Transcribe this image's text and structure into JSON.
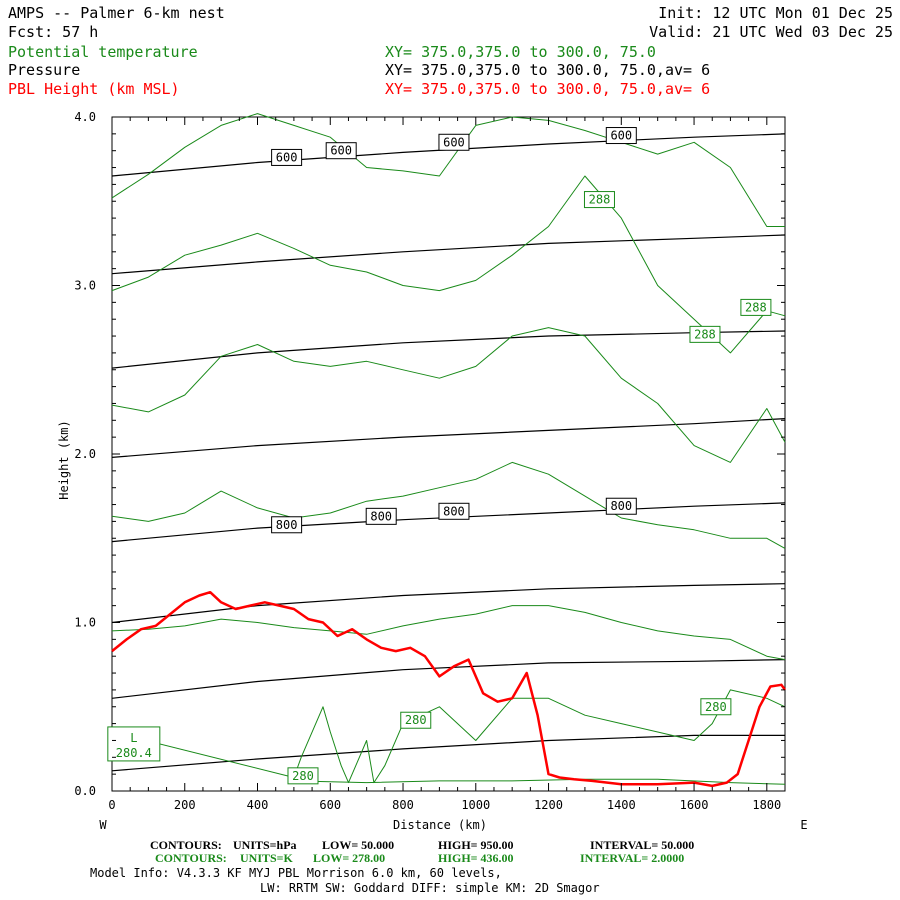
{
  "header": {
    "title": "AMPS -- Palmer 6-km nest",
    "fcst": "Fcst:   57 h",
    "init": "Init: 12 UTC Mon 01 Dec 25",
    "valid": "Valid: 21 UTC Wed 03 Dec 25",
    "fields": [
      {
        "name": "Potential temperature",
        "xy": "XY= 375.0,375.0 to 300.0, 75.0",
        "color": "#1a8a1a"
      },
      {
        "name": "Pressure",
        "xy": "XY= 375.0,375.0 to 300.0, 75.0,av=  6",
        "color": "#000000"
      },
      {
        "name": "PBL Height (km MSL)",
        "xy": "XY= 375.0,375.0 to 300.0, 75.0,av=  6",
        "color": "#ff0000"
      }
    ]
  },
  "footer": {
    "pressure_contours": {
      "label": "CONTOURS:",
      "units": "UNITS=hPa",
      "low": "LOW=  50.000",
      "high": "HIGH=  950.00",
      "interval": "INTERVAL=  50.000"
    },
    "theta_contours": {
      "label": "CONTOURS:",
      "units": "UNITS=K",
      "low": "LOW=  278.00",
      "high": "HIGH=  436.00",
      "interval": "INTERVAL=  2.0000"
    },
    "model_info": "Model Info: V4.3.3   KF      MYJ PBL  Morrison          6.0 km,  60 levels,",
    "model_info2": "LW: RRTM SW: Goddard DIFF: simple KM: 2D Smagor"
  },
  "chart_data": {
    "type": "line",
    "xlabel": "Distance (km)",
    "ylabel": "Height (km)",
    "xlim": [
      0,
      1850
    ],
    "ylim": [
      0,
      4.0
    ],
    "x_ticks": [
      0,
      200,
      400,
      600,
      800,
      1000,
      1200,
      1400,
      1600,
      1800
    ],
    "y_ticks": [
      0.0,
      1.0,
      2.0,
      3.0,
      4.0
    ],
    "x_tick_labels": [
      "0",
      "200",
      "400",
      "600",
      "800",
      "1000",
      "1200",
      "1400",
      "1600",
      "1800"
    ],
    "y_tick_labels": [
      "0.0",
      "1.0",
      "2.0",
      "3.0",
      "4.0"
    ],
    "left_end_label": "W",
    "right_end_label": "E",
    "colors": {
      "pressure": "#000000",
      "theta": "#1a8a1a",
      "pbl": "#ff0000"
    },
    "pressure_series": [
      {
        "x": [
          0,
          400,
          800,
          1200,
          1600,
          1850
        ],
        "y": [
          0.12,
          0.19,
          0.25,
          0.3,
          0.33,
          0.33
        ]
      },
      {
        "x": [
          0,
          400,
          800,
          1200,
          1600,
          1850
        ],
        "y": [
          0.55,
          0.65,
          0.72,
          0.76,
          0.77,
          0.78
        ]
      },
      {
        "x": [
          0,
          400,
          800,
          1200,
          1600,
          1850
        ],
        "y": [
          1.0,
          1.1,
          1.16,
          1.2,
          1.22,
          1.23
        ]
      },
      {
        "x": [
          0,
          400,
          800,
          1200,
          1600,
          1850
        ],
        "y": [
          1.48,
          1.56,
          1.61,
          1.65,
          1.69,
          1.71
        ]
      },
      {
        "x": [
          0,
          400,
          800,
          1200,
          1600,
          1850
        ],
        "y": [
          1.98,
          2.05,
          2.1,
          2.14,
          2.18,
          2.21
        ]
      },
      {
        "x": [
          0,
          400,
          800,
          1200,
          1600,
          1850
        ],
        "y": [
          2.51,
          2.6,
          2.66,
          2.7,
          2.72,
          2.73
        ]
      },
      {
        "x": [
          0,
          400,
          800,
          1200,
          1600,
          1850
        ],
        "y": [
          3.07,
          3.14,
          3.2,
          3.25,
          3.28,
          3.3
        ]
      },
      {
        "x": [
          0,
          400,
          800,
          1200,
          1600,
          1850
        ],
        "y": [
          3.65,
          3.73,
          3.79,
          3.84,
          3.88,
          3.9
        ]
      }
    ],
    "theta_series": [
      {
        "x": [
          0,
          100,
          200,
          300,
          400,
          500,
          600,
          700,
          800,
          900,
          1000,
          1100,
          1200,
          1300,
          1400,
          1500,
          1600,
          1700,
          1800,
          1850
        ],
        "y": [
          3.52,
          3.66,
          3.82,
          3.95,
          4.02,
          3.95,
          3.88,
          3.7,
          3.68,
          3.65,
          3.95,
          4.0,
          3.98,
          3.92,
          3.85,
          3.78,
          3.85,
          3.7,
          3.35,
          3.35
        ]
      },
      {
        "x": [
          0,
          100,
          200,
          300,
          400,
          500,
          600,
          700,
          800,
          900,
          1000,
          1100,
          1200,
          1300,
          1400,
          1500,
          1600,
          1700,
          1800,
          1850
        ],
        "y": [
          2.97,
          3.05,
          3.18,
          3.24,
          3.31,
          3.22,
          3.12,
          3.08,
          3.0,
          2.97,
          3.03,
          3.18,
          3.35,
          3.65,
          3.4,
          3.0,
          2.8,
          2.6,
          2.85,
          2.82
        ]
      },
      {
        "x": [
          0,
          100,
          200,
          300,
          400,
          500,
          600,
          700,
          800,
          900,
          1000,
          1100,
          1200,
          1300,
          1400,
          1500,
          1600,
          1700,
          1800,
          1850
        ],
        "y": [
          2.29,
          2.25,
          2.35,
          2.58,
          2.65,
          2.55,
          2.52,
          2.55,
          2.5,
          2.45,
          2.52,
          2.7,
          2.75,
          2.7,
          2.45,
          2.3,
          2.05,
          1.95,
          2.27,
          2.07
        ]
      },
      {
        "x": [
          0,
          100,
          200,
          300,
          400,
          500,
          600,
          700,
          800,
          900,
          1000,
          1100,
          1200,
          1300,
          1400,
          1500,
          1600,
          1700,
          1800,
          1850
        ],
        "y": [
          1.63,
          1.6,
          1.65,
          1.78,
          1.68,
          1.62,
          1.65,
          1.72,
          1.75,
          1.8,
          1.85,
          1.95,
          1.88,
          1.75,
          1.62,
          1.58,
          1.55,
          1.5,
          1.5,
          1.44
        ]
      },
      {
        "x": [
          0,
          100,
          200,
          300,
          400,
          500,
          600,
          700,
          800,
          900,
          1000,
          1100,
          1200,
          1300,
          1400,
          1500,
          1600,
          1700,
          1800,
          1850
        ],
        "y": [
          0.95,
          0.96,
          0.98,
          1.02,
          1.0,
          0.97,
          0.95,
          0.93,
          0.98,
          1.02,
          1.05,
          1.1,
          1.1,
          1.06,
          1.0,
          0.95,
          0.92,
          0.9,
          0.8,
          0.78
        ]
      },
      {
        "x": [
          0,
          500,
          520,
          580,
          600,
          630,
          650,
          700,
          720,
          750,
          800,
          900,
          1000,
          1100,
          1200,
          1300,
          1400,
          1500,
          1600,
          1650,
          1700,
          1800,
          1850
        ],
        "y": [
          0.35,
          0.08,
          0.2,
          0.5,
          0.35,
          0.15,
          0.05,
          0.3,
          0.05,
          0.15,
          0.4,
          0.5,
          0.3,
          0.55,
          0.55,
          0.45,
          0.4,
          0.35,
          0.3,
          0.4,
          0.6,
          0.55,
          0.5
        ]
      },
      {
        "x": [
          500,
          700,
          900,
          1100,
          1300,
          1500,
          1700,
          1850
        ],
        "y": [
          0.06,
          0.05,
          0.06,
          0.06,
          0.07,
          0.07,
          0.05,
          0.04
        ]
      }
    ],
    "pbl_series": {
      "x": [
        0,
        40,
        80,
        120,
        160,
        200,
        240,
        270,
        300,
        340,
        380,
        420,
        460,
        500,
        540,
        580,
        620,
        660,
        700,
        740,
        780,
        820,
        860,
        900,
        940,
        980,
        1020,
        1060,
        1100,
        1140,
        1170,
        1200,
        1230,
        1270,
        1320,
        1400,
        1500,
        1600,
        1650,
        1690,
        1720,
        1750,
        1780,
        1810,
        1840,
        1850
      ],
      "y": [
        0.83,
        0.9,
        0.96,
        0.98,
        1.05,
        1.12,
        1.16,
        1.18,
        1.12,
        1.08,
        1.1,
        1.12,
        1.1,
        1.08,
        1.02,
        1.0,
        0.92,
        0.96,
        0.9,
        0.85,
        0.83,
        0.85,
        0.8,
        0.68,
        0.74,
        0.78,
        0.58,
        0.53,
        0.55,
        0.7,
        0.45,
        0.1,
        0.08,
        0.07,
        0.06,
        0.04,
        0.04,
        0.05,
        0.03,
        0.05,
        0.1,
        0.3,
        0.5,
        0.62,
        0.63,
        0.6
      ]
    },
    "pressure_labels": [
      {
        "x": 480,
        "y": 3.76,
        "text": "600"
      },
      {
        "x": 630,
        "y": 3.8,
        "text": "600"
      },
      {
        "x": 940,
        "y": 3.85,
        "text": "600"
      },
      {
        "x": 1400,
        "y": 3.89,
        "text": "600"
      },
      {
        "x": 480,
        "y": 1.58,
        "text": "800"
      },
      {
        "x": 740,
        "y": 1.63,
        "text": "800"
      },
      {
        "x": 940,
        "y": 1.66,
        "text": "800"
      },
      {
        "x": 1400,
        "y": 1.69,
        "text": "800"
      }
    ],
    "theta_labels": [
      {
        "x": 1340,
        "y": 3.51,
        "text": "288"
      },
      {
        "x": 1630,
        "y": 2.71,
        "text": "288"
      },
      {
        "x": 1770,
        "y": 2.87,
        "text": "288"
      },
      {
        "x": 835,
        "y": 0.42,
        "text": "280"
      },
      {
        "x": 1660,
        "y": 0.5,
        "text": "280"
      },
      {
        "x": 525,
        "y": 0.09,
        "text": "280"
      }
    ],
    "low_marker": {
      "x": 60,
      "y": 0.22,
      "text": "L",
      "value": "280.4"
    }
  }
}
